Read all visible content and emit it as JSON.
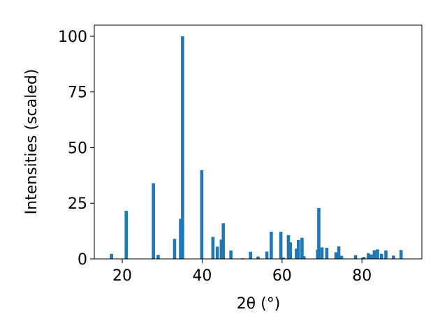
{
  "chart_data": {
    "type": "bar",
    "title": "",
    "xlabel": "2θ (°)",
    "ylabel": "Intensities (scaled)",
    "xlim": [
      13,
      95
    ],
    "ylim": [
      0,
      105
    ],
    "x_ticks": [
      "20",
      "40",
      "60",
      "80"
    ],
    "y_ticks": [
      "0",
      "25",
      "50",
      "75",
      "100"
    ],
    "grid": false,
    "legend": "none",
    "bar_color": "#1f77b4",
    "series": [
      {
        "x": [
          17.3,
          21.0,
          27.8,
          29.0,
          33.1,
          34.6,
          35.1,
          39.9,
          42.7,
          43.8,
          44.8,
          45.3,
          47.2,
          50.1,
          52.1,
          54.0,
          56.2,
          57.3,
          59.7,
          60.3,
          61.6,
          62.1,
          63.6,
          64.1,
          65.0,
          65.5,
          68.9,
          69.2,
          70.0,
          71.2,
          73.5,
          74.2,
          74.9,
          78.4,
          80.2,
          80.5,
          81.6,
          82.3,
          83.1,
          83.9,
          84.9,
          86.0,
          87.9,
          89.8
        ],
        "y": [
          2.3,
          21.6,
          34.0,
          1.8,
          9.0,
          18.0,
          100.0,
          39.8,
          9.9,
          5.5,
          8.7,
          16.0,
          3.8,
          0.3,
          3.2,
          1.1,
          3.3,
          12.2,
          12.2,
          0.6,
          10.7,
          7.5,
          4.6,
          8.5,
          9.5,
          1.2,
          4.2,
          22.9,
          5.2,
          5.0,
          3.0,
          5.6,
          1.4,
          1.7,
          0.5,
          0.9,
          2.6,
          2.0,
          3.9,
          4.3,
          2.3,
          3.8,
          1.5,
          4.0
        ]
      }
    ]
  }
}
